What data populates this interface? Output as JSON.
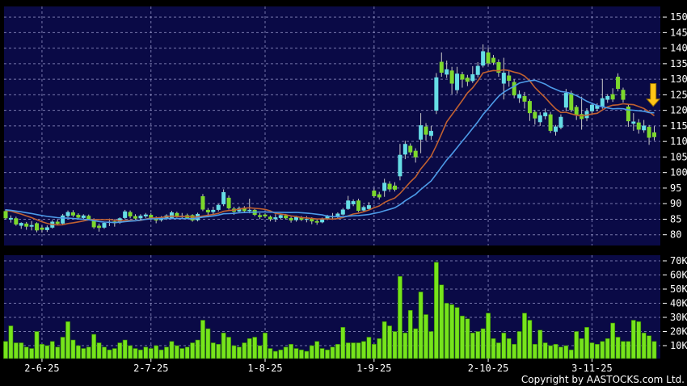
{
  "footer": {
    "copyright": "Copyright by AASTOCKS.com Ltd."
  },
  "colors": {
    "background": "#000000",
    "panel": "#0a0a46",
    "grid": "#9393c6",
    "up_candle": "#66dde6",
    "down_candle": "#7cd82c",
    "wick": "#c8c8c8",
    "volume_bar": "#76e41c",
    "volume_bar_edge": "#2f7a00",
    "ma_fast": "#c06030",
    "ma_slow": "#4d9be8",
    "axis_text": "#ffffff",
    "signal_arrow": "#ffc517",
    "signal_arrow_edge": "#9a7000"
  },
  "chart_data": {
    "type": "candlestick",
    "subtype": "price-with-volume",
    "grid": "dashed",
    "legend": "none",
    "price_axis": {
      "side": "right",
      "ticks": [
        150,
        145,
        140,
        135,
        130,
        125,
        120,
        115,
        110,
        105,
        100,
        95,
        90,
        85,
        80
      ],
      "visible_range": [
        80,
        150
      ]
    },
    "volume_axis": {
      "side": "right",
      "tick_labels": [
        "70K",
        "60K",
        "50K",
        "40K",
        "30K",
        "20K",
        "10K"
      ],
      "tick_values": [
        70,
        60,
        50,
        40,
        30,
        20,
        10
      ]
    },
    "x_axis": {
      "ticks": [
        {
          "label": "2-6-25",
          "index": 7
        },
        {
          "label": "2-7-25",
          "index": 28
        },
        {
          "label": "1-8-25",
          "index": 50
        },
        {
          "label": "1-9-25",
          "index": 71
        },
        {
          "label": "2-10-25",
          "index": 93
        },
        {
          "label": "3-11-25",
          "index": 113
        }
      ]
    },
    "indicators": [
      {
        "name": "ma-fast",
        "period": 10,
        "color_key": "ma_fast"
      },
      {
        "name": "ma-slow",
        "period": 20,
        "color_key": "ma_slow"
      }
    ],
    "ma_seed_closes": [
      88.9,
      88.7,
      88.6,
      88.4,
      88.3,
      88.2,
      88.1,
      88.0,
      87.9,
      87.8,
      87.9,
      88.1,
      88.3,
      88.5,
      88.6,
      88.4,
      88.2,
      88.0,
      87.8,
      87.6
    ],
    "signal": {
      "shape": "down-arrow",
      "index": 124.8,
      "tip_price": 121.3,
      "top_price": 128.6
    },
    "candles_format": [
      "open",
      "high",
      "low",
      "close",
      "volume_K"
    ],
    "candles": [
      [
        87.6,
        88.2,
        84.9,
        85.3,
        13
      ],
      [
        84.9,
        86.2,
        83.9,
        85.4,
        24
      ],
      [
        85.3,
        85.8,
        82.9,
        83.3,
        12
      ],
      [
        82.9,
        84.0,
        81.9,
        83.8,
        12
      ],
      [
        83.6,
        84.1,
        81.6,
        82.6,
        9
      ],
      [
        82.6,
        84.4,
        81.4,
        83.1,
        8
      ],
      [
        83.7,
        84.0,
        80.8,
        81.4,
        20
      ],
      [
        82.3,
        83.0,
        80.7,
        81.6,
        11
      ],
      [
        81.5,
        83.0,
        80.9,
        82.4,
        10
      ],
      [
        82.3,
        84.7,
        82.0,
        84.2,
        13
      ],
      [
        84.2,
        84.9,
        83.1,
        83.5,
        9
      ],
      [
        83.6,
        86.7,
        83.3,
        86.2,
        16
      ],
      [
        86.0,
        87.8,
        85.6,
        87.3,
        27
      ],
      [
        87.2,
        87.9,
        85.7,
        86.2,
        14
      ],
      [
        86.4,
        86.9,
        85.0,
        85.5,
        10
      ],
      [
        85.4,
        86.6,
        84.8,
        86.2,
        8
      ],
      [
        86.1,
        86.5,
        84.7,
        85.0,
        9
      ],
      [
        84.9,
        85.3,
        81.9,
        82.4,
        18
      ],
      [
        82.9,
        83.6,
        81.0,
        82.2,
        12
      ],
      [
        82.3,
        84.2,
        81.9,
        83.8,
        9
      ],
      [
        83.8,
        85.2,
        82.8,
        84.2,
        7
      ],
      [
        84.3,
        85.0,
        82.6,
        83.7,
        8
      ],
      [
        83.9,
        85.6,
        83.5,
        85.3,
        12
      ],
      [
        85.4,
        88.0,
        85.0,
        87.5,
        14
      ],
      [
        87.3,
        87.8,
        85.3,
        85.9,
        10
      ],
      [
        86.0,
        86.6,
        84.9,
        85.2,
        8
      ],
      [
        85.3,
        86.6,
        84.8,
        86.1,
        7
      ],
      [
        85.9,
        87.0,
        85.4,
        86.5,
        9
      ],
      [
        86.4,
        86.9,
        84.9,
        85.3,
        8
      ],
      [
        85.4,
        85.9,
        83.7,
        84.6,
        10
      ],
      [
        84.7,
        86.0,
        84.2,
        85.5,
        7
      ],
      [
        85.2,
        86.6,
        84.8,
        86.2,
        9
      ],
      [
        85.4,
        87.7,
        85.2,
        87.2,
        13
      ],
      [
        87.0,
        87.4,
        85.5,
        85.9,
        10
      ],
      [
        85.8,
        87.0,
        85.0,
        86.1,
        8
      ],
      [
        86.3,
        86.8,
        85.0,
        85.3,
        9
      ],
      [
        86.3,
        86.6,
        84.2,
        84.6,
        12
      ],
      [
        84.7,
        87.1,
        84.3,
        86.7,
        14
      ],
      [
        92.4,
        93.1,
        87.6,
        88.1,
        28
      ],
      [
        88.0,
        88.6,
        85.6,
        87.2,
        22
      ],
      [
        87.3,
        89.0,
        86.4,
        88.0,
        12
      ],
      [
        88.0,
        89.9,
        87.5,
        89.6,
        11
      ],
      [
        89.8,
        94.6,
        89.2,
        93.7,
        19
      ],
      [
        91.9,
        92.6,
        88.1,
        88.5,
        16
      ],
      [
        88.4,
        89.0,
        86.4,
        87.4,
        10
      ],
      [
        87.5,
        89.1,
        87.0,
        88.6,
        9
      ],
      [
        88.7,
        89.2,
        87.1,
        87.6,
        12
      ],
      [
        87.6,
        91.6,
        86.9,
        88.0,
        15
      ],
      [
        88.0,
        88.3,
        86.0,
        86.4,
        16
      ],
      [
        86.3,
        87.0,
        85.0,
        85.7,
        10
      ],
      [
        86.5,
        86.9,
        85.4,
        85.9,
        19
      ],
      [
        85.8,
        86.2,
        84.3,
        85.0,
        8
      ],
      [
        85.0,
        86.6,
        84.1,
        85.6,
        6
      ],
      [
        85.4,
        86.8,
        85.0,
        86.3,
        7
      ],
      [
        86.2,
        86.7,
        85.0,
        85.3,
        9
      ],
      [
        85.4,
        85.8,
        83.9,
        84.6,
        11
      ],
      [
        84.7,
        86.1,
        84.2,
        85.7,
        8
      ],
      [
        85.6,
        86.0,
        84.4,
        84.8,
        7
      ],
      [
        84.8,
        86.0,
        84.0,
        85.1,
        6
      ],
      [
        85.2,
        85.6,
        83.4,
        84.3,
        10
      ],
      [
        84.4,
        84.9,
        83.2,
        83.9,
        13
      ],
      [
        84.0,
        85.5,
        83.7,
        85.2,
        8
      ],
      [
        85.0,
        86.4,
        84.7,
        86.0,
        7
      ],
      [
        86.0,
        87.0,
        84.8,
        85.6,
        9
      ],
      [
        85.7,
        87.2,
        85.3,
        86.8,
        11
      ],
      [
        86.5,
        88.6,
        86.2,
        88.1,
        23
      ],
      [
        88.3,
        92.5,
        88.0,
        91.0,
        12
      ],
      [
        89.8,
        91.4,
        89.2,
        90.8,
        12
      ],
      [
        91.0,
        91.6,
        87.3,
        87.7,
        12
      ],
      [
        87.8,
        89.4,
        87.2,
        88.9,
        13
      ],
      [
        88.3,
        90.5,
        87.8,
        89.5,
        16
      ],
      [
        94.2,
        94.9,
        91.9,
        92.4,
        11
      ],
      [
        93.0,
        93.8,
        91.3,
        92.0,
        15
      ],
      [
        94.1,
        98.0,
        92.2,
        96.7,
        27
      ],
      [
        96.4,
        97.2,
        93.8,
        94.6,
        24
      ],
      [
        95.8,
        96.9,
        93.9,
        94.5,
        20
      ],
      [
        98.8,
        109.2,
        97.5,
        105.7,
        59
      ],
      [
        105.8,
        110.2,
        104.3,
        109.2,
        19
      ],
      [
        108.6,
        109.4,
        105.6,
        106.5,
        35
      ],
      [
        107.0,
        107.8,
        103.2,
        104.9,
        22
      ],
      [
        110.6,
        119.1,
        106.2,
        115.2,
        48
      ],
      [
        114.8,
        115.9,
        110.2,
        112.2,
        32
      ],
      [
        111.8,
        115.0,
        110.5,
        113.4,
        20
      ],
      [
        119.9,
        132.0,
        118.8,
        130.6,
        69
      ],
      [
        135.6,
        138.6,
        130.8,
        132.1,
        53
      ],
      [
        131.5,
        136.0,
        130.4,
        133.2,
        40
      ],
      [
        132.8,
        134.0,
        125.2,
        128.6,
        39
      ],
      [
        126.5,
        134.0,
        125.4,
        131.8,
        37
      ],
      [
        131.6,
        132.4,
        127.3,
        129.9,
        31
      ],
      [
        130.5,
        131.4,
        127.8,
        129.2,
        29
      ],
      [
        129.4,
        134.2,
        128.8,
        131.6,
        19
      ],
      [
        131.4,
        135.5,
        130.6,
        134.3,
        20
      ],
      [
        134.4,
        141.2,
        133.8,
        139.0,
        22
      ],
      [
        138.6,
        140.2,
        134.4,
        135.1,
        33
      ],
      [
        136.9,
        137.8,
        134.6,
        135.3,
        15
      ],
      [
        135.5,
        136.4,
        130.8,
        132.1,
        12
      ],
      [
        128.6,
        136.9,
        123.5,
        132.1,
        19
      ],
      [
        131.2,
        133.0,
        127.6,
        129.5,
        15
      ],
      [
        129.1,
        130.0,
        123.9,
        124.8,
        11
      ],
      [
        123.9,
        126.4,
        122.4,
        125.2,
        20
      ],
      [
        124.6,
        125.9,
        120.6,
        122.8,
        33
      ],
      [
        123.0,
        123.6,
        116.6,
        119.1,
        28
      ],
      [
        119.5,
        120.1,
        115.4,
        117.4,
        11
      ],
      [
        116.2,
        119.4,
        115.0,
        118.4,
        21
      ],
      [
        118.1,
        120.6,
        117.1,
        119.3,
        12
      ],
      [
        118.7,
        119.5,
        112.7,
        113.4,
        10
      ],
      [
        113.1,
        115.3,
        111.9,
        114.8,
        11
      ],
      [
        114.4,
        118.7,
        113.9,
        117.9,
        9
      ],
      [
        120.9,
        126.9,
        119.8,
        125.6,
        10
      ],
      [
        125.6,
        126.3,
        119.4,
        120.1,
        7
      ],
      [
        121.1,
        121.7,
        116.9,
        118.4,
        20
      ],
      [
        118.8,
        124.4,
        113.8,
        117.2,
        15
      ],
      [
        117.5,
        120.7,
        116.5,
        119.8,
        23
      ],
      [
        119.7,
        122.5,
        119.0,
        121.8,
        12
      ],
      [
        120.5,
        122.3,
        119.7,
        121.6,
        11
      ],
      [
        121.1,
        130.1,
        120.5,
        123.9,
        13
      ],
      [
        123.4,
        125.2,
        122.4,
        124.6,
        15
      ],
      [
        125.2,
        127.1,
        122.7,
        123.5,
        26
      ],
      [
        130.8,
        131.9,
        126.1,
        126.9,
        16
      ],
      [
        126.6,
        127.3,
        122.5,
        123.4,
        13
      ],
      [
        121.2,
        121.8,
        114.7,
        116.5,
        13
      ],
      [
        115.7,
        119.1,
        113.4,
        116.4,
        28
      ],
      [
        116.1,
        117.2,
        112.5,
        113.8,
        27
      ],
      [
        113.6,
        116.9,
        112.8,
        115.1,
        19
      ],
      [
        114.7,
        115.3,
        108.9,
        111.2,
        17
      ],
      [
        112.9,
        114.9,
        110.3,
        111.4,
        13
      ]
    ]
  }
}
